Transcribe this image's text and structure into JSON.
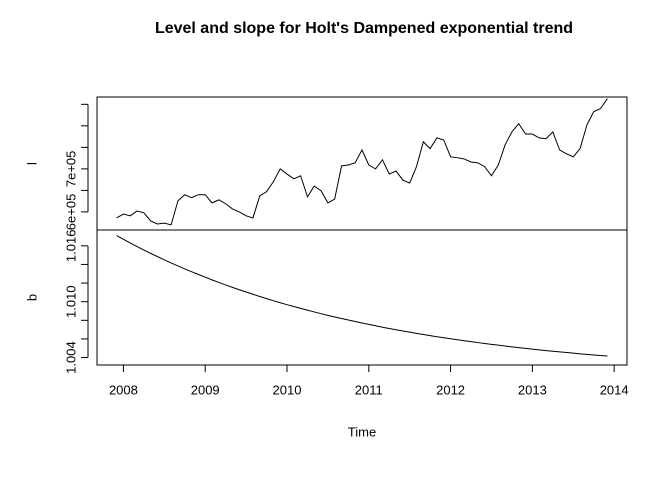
{
  "chart_data": {
    "type": "line",
    "title": "Level and slope for Holt's Dampened exponential trend",
    "xlabel": "Time",
    "xlim": [
      2007.677,
      2014.157
    ],
    "xticks": [
      2008,
      2009,
      2010,
      2011,
      2012,
      2013,
      2014
    ],
    "color": "#000000",
    "x": [
      2007.917,
      2008.0,
      2008.083,
      2008.167,
      2008.25,
      2008.333,
      2008.417,
      2008.5,
      2008.583,
      2008.667,
      2008.75,
      2008.833,
      2008.917,
      2009.0,
      2009.083,
      2009.167,
      2009.25,
      2009.333,
      2009.417,
      2009.5,
      2009.583,
      2009.667,
      2009.75,
      2009.833,
      2009.917,
      2010.0,
      2010.083,
      2010.167,
      2010.25,
      2010.333,
      2010.417,
      2010.5,
      2010.583,
      2010.667,
      2010.75,
      2010.833,
      2010.917,
      2011.0,
      2011.083,
      2011.167,
      2011.25,
      2011.333,
      2011.417,
      2011.5,
      2011.583,
      2011.667,
      2011.75,
      2011.833,
      2011.917,
      2012.0,
      2012.083,
      2012.167,
      2012.25,
      2012.333,
      2012.417,
      2012.5,
      2012.583,
      2012.667,
      2012.75,
      2012.833,
      2012.917,
      2013.0,
      2013.083,
      2013.167,
      2013.25,
      2013.333,
      2013.417,
      2013.5,
      2013.583,
      2013.667,
      2013.75,
      2013.833,
      2013.917
    ],
    "panels": [
      {
        "ylabel": "l",
        "ylim": [
          558000,
          867000
        ],
        "yticks": [
          {
            "value": 600000,
            "label": "6e+05"
          },
          {
            "value": 700000,
            "label": "7e+05"
          }
        ],
        "yminor_ticks": [
          650000,
          750000,
          800000,
          850000
        ],
        "values": [
          586000,
          595000,
          591000,
          602000,
          598000,
          579000,
          572000,
          574000,
          570000,
          626000,
          640000,
          633000,
          640000,
          640000,
          621000,
          628000,
          619000,
          607000,
          600000,
          591000,
          586000,
          637000,
          647000,
          670000,
          700000,
          688000,
          677000,
          684000,
          635000,
          660000,
          649000,
          621000,
          630000,
          707000,
          709000,
          714000,
          744000,
          709000,
          700000,
          721000,
          688000,
          695000,
          674000,
          667000,
          705000,
          763000,
          747000,
          772000,
          767000,
          728000,
          726000,
          723000,
          716000,
          714000,
          705000,
          684000,
          709000,
          756000,
          786000,
          805000,
          781000,
          781000,
          772000,
          770000,
          786000,
          744000,
          735000,
          728000,
          747000,
          802000,
          833000,
          840000,
          863000
        ]
      },
      {
        "ylabel": "b",
        "ylim": [
          1.0032,
          1.0177
        ],
        "yticks": [
          {
            "value": 1.004,
            "label": "1.004"
          },
          {
            "value": 1.01,
            "label": "1.010"
          },
          {
            "value": 1.016,
            "label": "1.016"
          }
        ],
        "yminor_ticks": [
          1.006,
          1.008,
          1.012,
          1.014
        ],
        "values": [
          1.0171,
          1.0167,
          1.01631,
          1.01592,
          1.01555,
          1.01519,
          1.01484,
          1.0145,
          1.01416,
          1.01384,
          1.01352,
          1.01322,
          1.01292,
          1.01263,
          1.01234,
          1.01207,
          1.0118,
          1.01154,
          1.01128,
          1.01104,
          1.0108,
          1.01056,
          1.01033,
          1.01011,
          1.00989,
          1.00968,
          1.00948,
          1.00928,
          1.00909,
          1.0089,
          1.00871,
          1.00853,
          1.00836,
          1.00819,
          1.00803,
          1.00787,
          1.00771,
          1.00756,
          1.00741,
          1.00726,
          1.00712,
          1.00699,
          1.00685,
          1.00673,
          1.0066,
          1.00648,
          1.00636,
          1.00624,
          1.00613,
          1.00602,
          1.00591,
          1.00581,
          1.00571,
          1.00561,
          1.00551,
          1.00542,
          1.00533,
          1.00524,
          1.00515,
          1.00507,
          1.00499,
          1.00491,
          1.00483,
          1.00475,
          1.00468,
          1.00461,
          1.00454,
          1.00447,
          1.0044,
          1.00434,
          1.00428,
          1.00422,
          1.00416
        ]
      }
    ]
  }
}
